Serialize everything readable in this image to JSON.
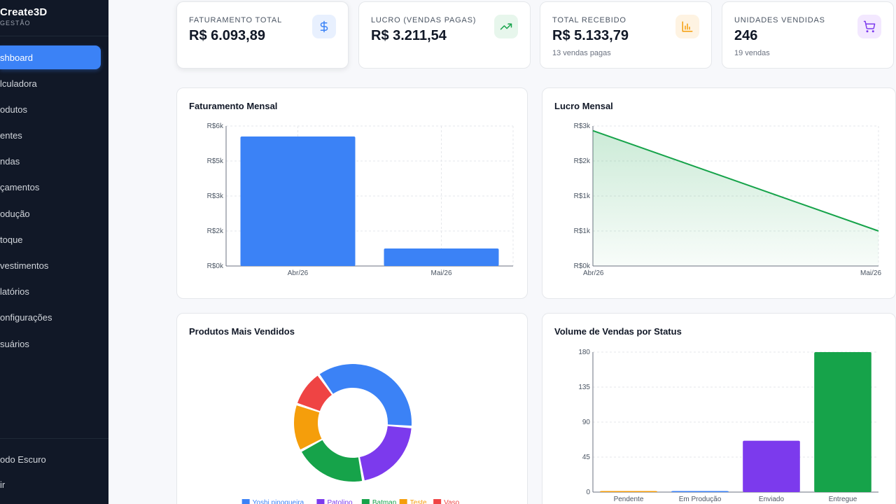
{
  "sidebar": {
    "brand_title": "Create3D",
    "brand_subtitle": "GESTÃO",
    "items": [
      {
        "label": "shboard",
        "active": true
      },
      {
        "label": "lculadora"
      },
      {
        "label": "odutos"
      },
      {
        "label": "entes"
      },
      {
        "label": "ndas"
      },
      {
        "label": "çamentos"
      },
      {
        "label": "odução"
      },
      {
        "label": "toque"
      },
      {
        "label": "vestimentos"
      },
      {
        "label": "latórios"
      },
      {
        "label": "onfigurações"
      },
      {
        "label": "suários"
      }
    ],
    "bottom_items": [
      {
        "label": "odo Escuro"
      },
      {
        "label": "ir"
      }
    ]
  },
  "stats": [
    {
      "label": "FATURAMENTO TOTAL",
      "value": "R$ 6.093,89",
      "sub": "",
      "icon": "dollar-icon",
      "icon_bg": "#e8f0fe",
      "icon_color": "#3b82f6"
    },
    {
      "label": "LUCRO (VENDAS PAGAS)",
      "value": "R$ 3.211,54",
      "sub": "",
      "icon": "trending-up-icon",
      "icon_bg": "#e7f6ec",
      "icon_color": "#16a34a"
    },
    {
      "label": "TOTAL RECEBIDO",
      "value": "R$ 5.133,79",
      "sub": "13 vendas pagas",
      "icon": "bar-chart-icon",
      "icon_bg": "#fef3e2",
      "icon_color": "#f59e0b"
    },
    {
      "label": "UNIDADES VENDIDAS",
      "value": "246",
      "sub": "19 vendas",
      "icon": "cart-icon",
      "icon_bg": "#f3e8ff",
      "icon_color": "#7c3aed"
    }
  ],
  "charts": {
    "faturamento_title": "Faturamento Mensal",
    "lucro_title": "Lucro Mensal",
    "produtos_title": "Produtos Mais Vendidos",
    "status_title": "Volume de Vendas por Status"
  },
  "chart_data": [
    {
      "type": "bar",
      "title": "Faturamento Mensal",
      "categories": [
        "Abr/26",
        "Mai/26"
      ],
      "values": [
        5550,
        750
      ],
      "ylim": [
        0,
        6000
      ],
      "yticks": [
        "R$0k",
        "R$2k",
        "R$3k",
        "R$5k",
        "R$6k"
      ],
      "yticks_values": [
        0,
        1500,
        3000,
        4500,
        6000
      ],
      "color": "#3b82f6",
      "grid": true
    },
    {
      "type": "area",
      "title": "Lucro Mensal",
      "categories": [
        "Abr/26",
        "Mai/26"
      ],
      "values": [
        2900,
        750
      ],
      "ylim": [
        0,
        3000
      ],
      "yticks": [
        "R$0k",
        "R$1k",
        "R$1k",
        "R$2k",
        "R$3k"
      ],
      "yticks_values": [
        0,
        750,
        1500,
        2250,
        3000
      ],
      "color": "#16a34a",
      "grid": true
    },
    {
      "type": "pie",
      "title": "Produtos Mais Vendidos",
      "labels": [
        "Yoshi pinogueira",
        "Patolino",
        "Batman",
        "Teste",
        "Vaso"
      ],
      "values": [
        36,
        21,
        20,
        13,
        10
      ],
      "colors": [
        "#3b82f6",
        "#7c3aed",
        "#16a34a",
        "#f59e0b",
        "#ef4444"
      ],
      "legend": "bottom"
    },
    {
      "type": "bar",
      "title": "Volume de Vendas por Status",
      "categories": [
        "Pendente",
        "Em Produção",
        "Enviado",
        "Entregue"
      ],
      "values": [
        1,
        1,
        66,
        180
      ],
      "ylim": [
        0,
        180
      ],
      "yticks": [
        "0",
        "45",
        "90",
        "135",
        "180"
      ],
      "yticks_values": [
        0,
        45,
        90,
        135,
        180
      ],
      "colors": [
        "#f59e0b",
        "#3b82f6",
        "#7c3aed",
        "#16a34a"
      ],
      "grid": true
    }
  ]
}
